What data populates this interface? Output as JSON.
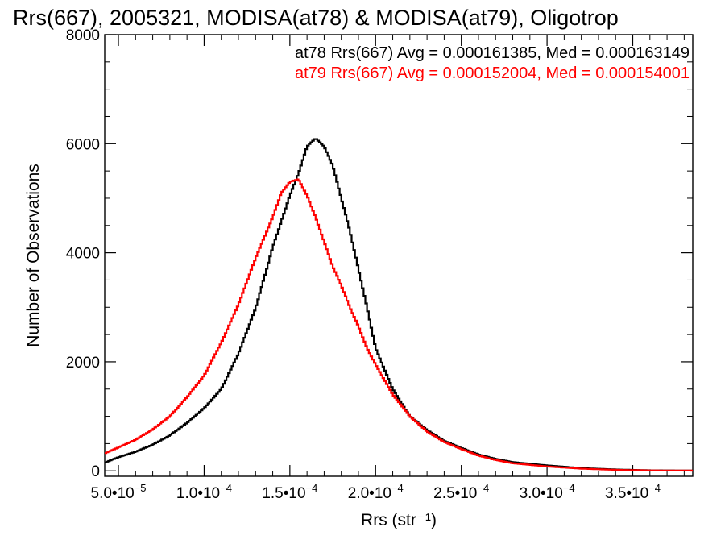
{
  "chart_data": {
    "type": "line",
    "style": "histogram-step",
    "title": "Rrs(667), 2005321, MODISA(at78) & MODISA(at79), Oligotrop",
    "xlabel": "Rrs (str⁻¹)",
    "ylabel": "Number of Observations",
    "xlim": [
      4.2e-05,
      0.000385
    ],
    "ylim": [
      -100,
      8000
    ],
    "x_ticks": [
      5e-05,
      0.0001,
      0.00015,
      0.0002,
      0.00025,
      0.0003,
      0.00035
    ],
    "x_tick_labels": [
      {
        "mant": "5.0•10",
        "exp": "−5"
      },
      {
        "mant": "1.0•10",
        "exp": "−4"
      },
      {
        "mant": "1.5•10",
        "exp": "−4"
      },
      {
        "mant": "2.0•10",
        "exp": "−4"
      },
      {
        "mant": "2.5•10",
        "exp": "−4"
      },
      {
        "mant": "3.0•10",
        "exp": "−4"
      },
      {
        "mant": "3.5•10",
        "exp": "−4"
      }
    ],
    "y_ticks": [
      0,
      2000,
      4000,
      6000,
      8000
    ],
    "y_tick_labels": [
      "0",
      "2000",
      "4000",
      "6000",
      "8000"
    ],
    "legend_position": "top-right",
    "series": [
      {
        "label": "at78 Rrs(667) Avg = 0.000161385, Med = 0.000163149",
        "color": "#000000",
        "x": [
          4.2e-05,
          5e-05,
          6e-05,
          7e-05,
          8e-05,
          9e-05,
          0.0001,
          0.00011,
          0.00012,
          0.00013,
          0.00014,
          0.00015,
          0.000155,
          0.00016,
          0.000165,
          0.00017,
          0.000175,
          0.00018,
          0.000185,
          0.00019,
          0.000195,
          0.0002,
          0.00021,
          0.00022,
          0.00023,
          0.00024,
          0.00025,
          0.00026,
          0.00027,
          0.00028,
          0.0003,
          0.00032,
          0.00034,
          0.00036,
          0.000385
        ],
        "y": [
          150,
          250,
          350,
          480,
          650,
          880,
          1150,
          1500,
          2150,
          2980,
          4100,
          5050,
          5450,
          5950,
          6100,
          5950,
          5600,
          5000,
          4400,
          3700,
          3000,
          2250,
          1500,
          1000,
          750,
          550,
          420,
          300,
          220,
          160,
          100,
          50,
          25,
          10,
          5
        ]
      },
      {
        "label": "at79 Rrs(667) Avg = 0.000152004, Med = 0.000154001",
        "color": "#ff0000",
        "x": [
          4.2e-05,
          5e-05,
          6e-05,
          7e-05,
          8e-05,
          9e-05,
          0.0001,
          0.00011,
          0.00012,
          0.00013,
          0.00014,
          0.000145,
          0.00015,
          0.000155,
          0.00016,
          0.000165,
          0.00017,
          0.000175,
          0.00018,
          0.000185,
          0.00019,
          0.000195,
          0.0002,
          0.00021,
          0.00022,
          0.00023,
          0.00024,
          0.00025,
          0.00026,
          0.00027,
          0.00028,
          0.0003,
          0.00032,
          0.00034,
          0.00036,
          0.000385
        ],
        "y": [
          320,
          430,
          570,
          760,
          1000,
          1350,
          1750,
          2350,
          3050,
          3900,
          4650,
          5100,
          5300,
          5350,
          5050,
          4650,
          4200,
          3750,
          3400,
          3000,
          2650,
          2250,
          1950,
          1400,
          1000,
          720,
          530,
          400,
          280,
          200,
          140,
          80,
          40,
          18,
          8,
          4
        ]
      }
    ]
  }
}
